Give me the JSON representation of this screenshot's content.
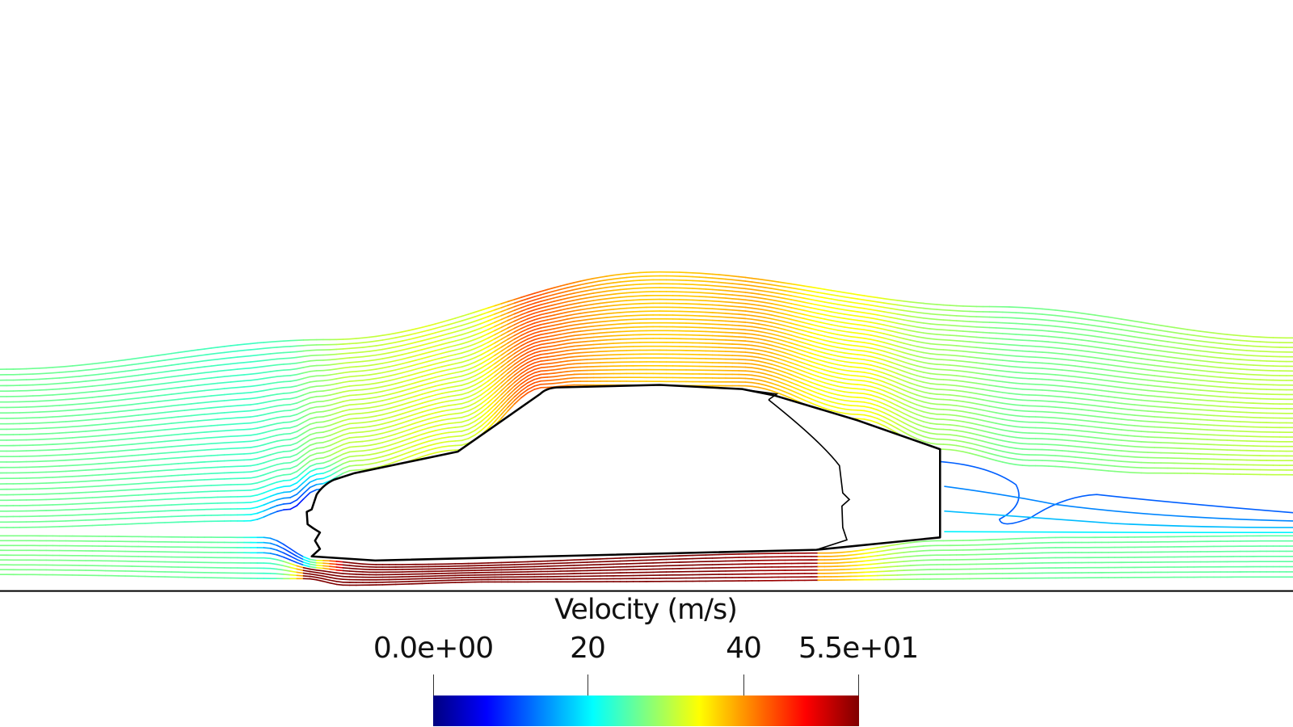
{
  "colorbar": {
    "title": "Velocity (m/s)",
    "range": [
      0,
      55
    ],
    "ticks": [
      {
        "value": 0,
        "label": "0.0e+00"
      },
      {
        "value": 20,
        "label": "20"
      },
      {
        "value": 40,
        "label": "40"
      },
      {
        "value": 55,
        "label": "5.5e+01"
      }
    ],
    "colormap": [
      "#00007f",
      "#0000ff",
      "#0080ff",
      "#00ffff",
      "#80ff80",
      "#ffff00",
      "#ff8000",
      "#ff0000",
      "#7f0000"
    ]
  },
  "colors": {
    "outline": "#000000",
    "ground": "#000000"
  }
}
